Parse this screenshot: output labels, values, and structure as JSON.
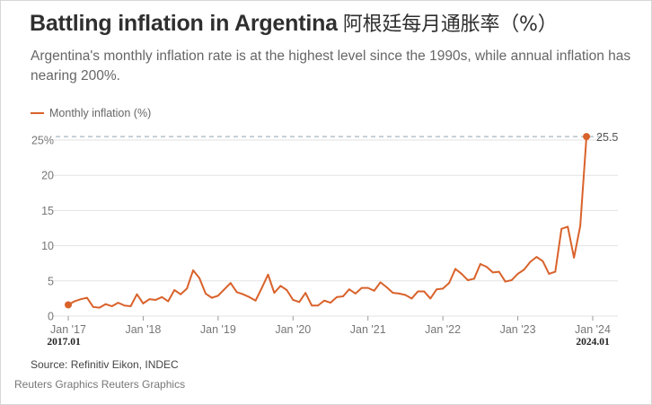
{
  "header": {
    "title": "Battling inflation in Argentina",
    "title_cn": "阿根廷每月通胀率（%）",
    "subtitle": "Argentina's monthly inflation rate is at the highest level since the 1990s, while annual inflation has nearing 200%."
  },
  "legend": {
    "label": "Monthly inflation (%)"
  },
  "footer": {
    "source": "Source: Refinitiv Eikon, INDEC",
    "credit": "Reuters Graphics Reuters Graphics"
  },
  "colors": {
    "line": "#d9622b",
    "grid": "#e3e3e3",
    "reference": "#b5c2cc"
  },
  "chart_data": {
    "type": "line",
    "title": "Battling inflation in Argentina",
    "xlabel": "",
    "ylabel": "",
    "grid": true,
    "legend_position": "top-left",
    "ylim": [
      0,
      25
    ],
    "xlim": [
      2017.0,
      2024.0
    ],
    "y_ticks": [
      0,
      5,
      10,
      15,
      20,
      25
    ],
    "y_tick_labels": [
      "0",
      "5",
      "10",
      "15",
      "20",
      "25%"
    ],
    "x_ticks": [
      {
        "value": 2017.0,
        "label": "Jan '17"
      },
      {
        "value": 2018.0,
        "label": "Jan '18"
      },
      {
        "value": 2019.0,
        "label": "Jan '19"
      },
      {
        "value": 2020.0,
        "label": "Jan '20"
      },
      {
        "value": 2021.0,
        "label": "Jan '21"
      },
      {
        "value": 2022.0,
        "label": "Jan '22"
      },
      {
        "value": 2023.0,
        "label": "Jan '23"
      },
      {
        "value": 2024.0,
        "label": "Jan '24"
      }
    ],
    "annotations": {
      "start_year": "2017.01",
      "end_year": "2024.01",
      "last_value_label": "25.5"
    },
    "reference_line": 25.5,
    "series": [
      {
        "name": "Monthly inflation (%)",
        "start": "2017-01",
        "values": [
          1.6,
          2.1,
          2.4,
          2.6,
          1.3,
          1.2,
          1.7,
          1.4,
          1.9,
          1.5,
          1.4,
          3.1,
          1.8,
          2.4,
          2.3,
          2.7,
          2.1,
          3.7,
          3.1,
          3.9,
          6.5,
          5.4,
          3.2,
          2.6,
          2.9,
          3.8,
          4.7,
          3.4,
          3.1,
          2.7,
          2.2,
          4.0,
          5.9,
          3.3,
          4.3,
          3.7,
          2.3,
          2.0,
          3.3,
          1.5,
          1.5,
          2.2,
          1.9,
          2.7,
          2.8,
          3.8,
          3.2,
          4.0,
          4.0,
          3.6,
          4.8,
          4.1,
          3.3,
          3.2,
          3.0,
          2.5,
          3.5,
          3.5,
          2.5,
          3.8,
          3.9,
          4.7,
          6.7,
          6.0,
          5.1,
          5.3,
          7.4,
          7.0,
          6.2,
          6.3,
          4.9,
          5.1,
          6.0,
          6.6,
          7.7,
          8.4,
          7.8,
          6.0,
          6.3,
          12.4,
          12.7,
          8.3,
          12.8,
          25.5
        ]
      }
    ]
  }
}
